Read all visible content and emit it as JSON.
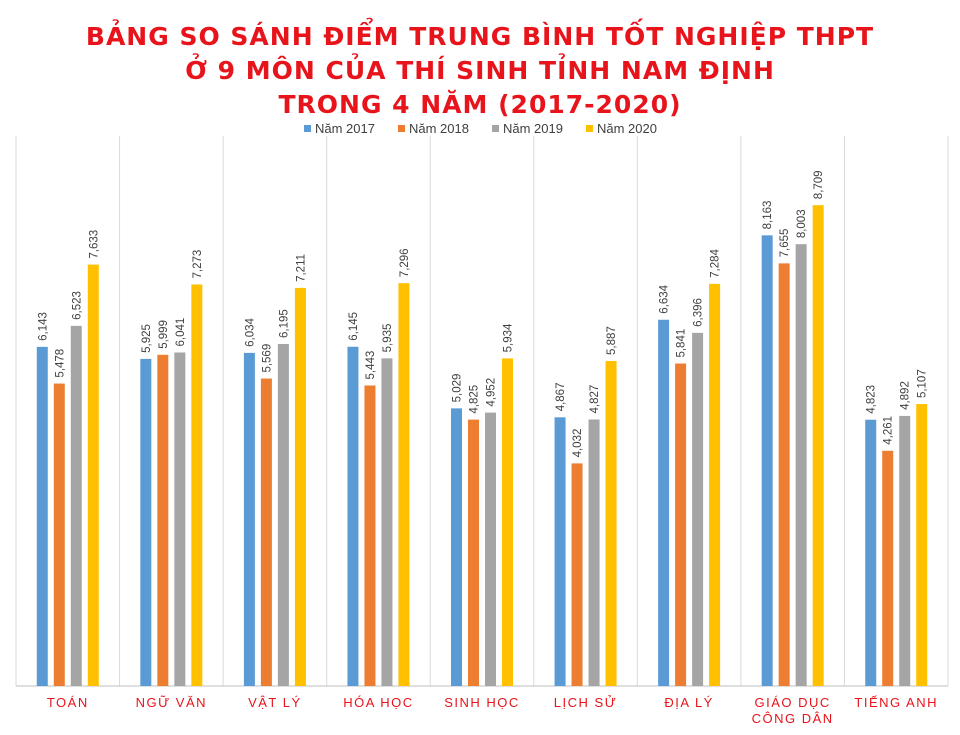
{
  "chart_data": {
    "type": "bar",
    "title_lines": [
      "BẢNG SO SÁNH ĐIỂM TRUNG BÌNH TỐT NGHIỆP THPT",
      "Ở 9 MÔN CỦA THÍ SINH TỈNH NAM ĐỊNH",
      "TRONG 4 NĂM (2017-2020)"
    ],
    "categories": [
      [
        "TOÁN"
      ],
      [
        "NGỮ VĂN"
      ],
      [
        "VẬT LÝ"
      ],
      [
        "HÓA HỌC"
      ],
      [
        "SINH HỌC"
      ],
      [
        "LỊCH SỬ"
      ],
      [
        "ĐỊA LÝ"
      ],
      [
        "GIÁO DỤC",
        "CÔNG DÂN"
      ],
      [
        "TIẾNG ANH"
      ]
    ],
    "series": [
      {
        "name": "Năm 2017",
        "color": "#5b9bd5",
        "values": [
          6.143,
          5.925,
          6.034,
          6.145,
          5.029,
          4.867,
          6.634,
          8.163,
          4.823
        ],
        "labels": [
          "6,143",
          "5,925",
          "6,034",
          "6,145",
          "5,029",
          "4,867",
          "6,634",
          "8,163",
          "4,823"
        ]
      },
      {
        "name": "Năm 2018",
        "color": "#ed7d31",
        "values": [
          5.478,
          5.999,
          5.569,
          5.443,
          4.825,
          4.032,
          5.841,
          7.655,
          4.261
        ],
        "labels": [
          "5,478",
          "5,999",
          "5,569",
          "5,443",
          "4,825",
          "4,032",
          "5,841",
          "7,655",
          "4,261"
        ]
      },
      {
        "name": "Năm 2019",
        "color": "#a5a5a5",
        "values": [
          6.523,
          6.041,
          6.195,
          5.935,
          4.952,
          4.827,
          6.396,
          8.003,
          4.892
        ],
        "labels": [
          "6,523",
          "6,041",
          "6,195",
          "5,935",
          "4,952",
          "4,827",
          "6,396",
          "8,003",
          "4,892"
        ]
      },
      {
        "name": "Năm 2020",
        "color": "#ffc000",
        "values": [
          7.633,
          7.273,
          7.211,
          7.296,
          5.934,
          5.887,
          7.284,
          8.709,
          5.107
        ],
        "labels": [
          "7,633",
          "7,273",
          "7,211",
          "7,296",
          "5,934",
          "5,887",
          "7,284",
          "8,709",
          "5,107"
        ]
      }
    ],
    "ylim": [
      0,
      10
    ],
    "grid": "vertical separators between categories",
    "legend_position": "top"
  }
}
